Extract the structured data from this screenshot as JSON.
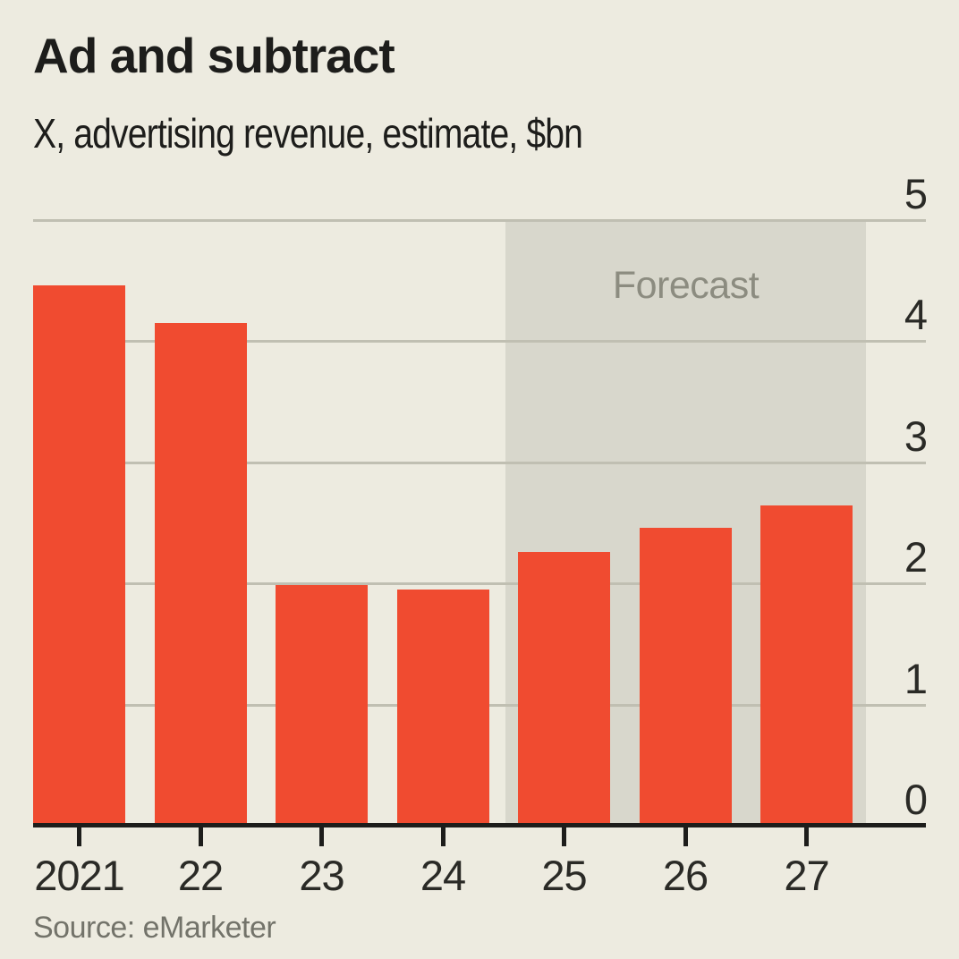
{
  "header": {
    "title": "Ad and subtract",
    "subtitle": "X, advertising revenue, estimate, $bn"
  },
  "chart_data": {
    "type": "bar",
    "title": "Ad and subtract",
    "subtitle": "X, advertising revenue, estimate, $bn",
    "unit": "$bn",
    "categories": [
      "2021",
      "22",
      "23",
      "24",
      "25",
      "26",
      "27"
    ],
    "values": [
      4.45,
      4.14,
      1.98,
      1.94,
      2.25,
      2.45,
      2.64
    ],
    "ylim": [
      0,
      5
    ],
    "yticks": [
      0,
      1,
      2,
      3,
      4,
      5
    ],
    "y_axis_side": "right",
    "grid": "horizontal",
    "legend": "none",
    "forecast": {
      "label": "Forecast",
      "from_category": "25",
      "to_category": "27"
    },
    "colors": {
      "bar": "#F04B30",
      "background": "#EDEBE0",
      "forecast_region": "#D8D7CC",
      "gridline": "#C0BFB2",
      "axis": "#1D1D1B",
      "forecast_text": "#8C8C80",
      "source_text": "#73736A"
    }
  },
  "source": {
    "text": "Source: eMarketer"
  }
}
